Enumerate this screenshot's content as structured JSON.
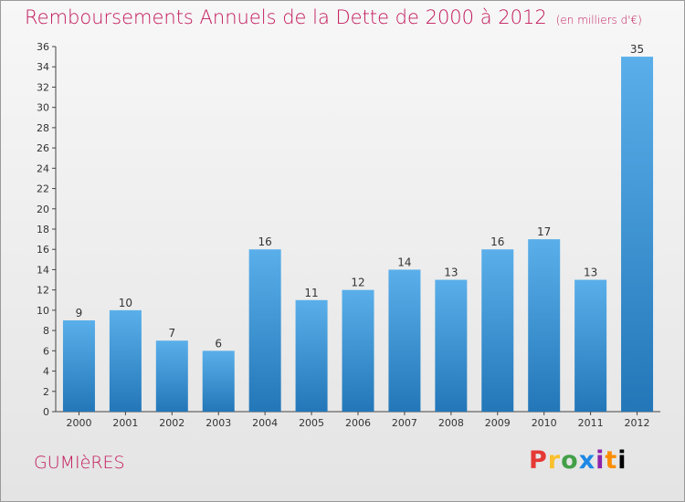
{
  "title": "Remboursements Annuels de la Dette de 2000 à 2012",
  "unit": "(en milliers d'€)",
  "commune": "GUMIèRES",
  "brand": [
    "P",
    "r",
    "o",
    "x",
    "i",
    "t",
    "i"
  ],
  "colors": {
    "bar_top": "#5aafea",
    "bar_bottom": "#2377b8",
    "title": "#c2185b"
  },
  "chart_data": {
    "type": "bar",
    "title": "Remboursements Annuels de la Dette de 2000 à 2012",
    "xlabel": "",
    "ylabel": "",
    "categories": [
      "2000",
      "2001",
      "2002",
      "2003",
      "2004",
      "2005",
      "2006",
      "2007",
      "2008",
      "2009",
      "2010",
      "2011",
      "2012"
    ],
    "values": [
      9,
      10,
      7,
      6,
      16,
      11,
      12,
      14,
      13,
      16,
      17,
      13,
      35
    ],
    "ylim": [
      0,
      36
    ],
    "yticks": [
      0,
      2,
      4,
      6,
      8,
      10,
      12,
      14,
      16,
      18,
      20,
      22,
      24,
      26,
      28,
      30,
      32,
      34,
      36
    ],
    "grid": false,
    "legend": "none"
  }
}
